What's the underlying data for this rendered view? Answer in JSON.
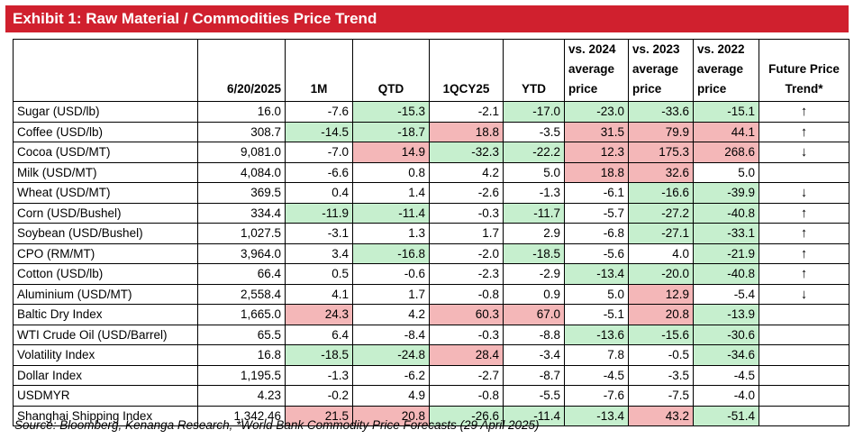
{
  "title": "Exhibit 1: Raw Material / Commodities Price Trend",
  "source": "Source: Bloomberg, Kenanga Research, *World Bank Commodity Price Forecasts (29 April 2025)",
  "headers": [
    "",
    "6/20/2025",
    "1M",
    "QTD",
    "1QCY25",
    "YTD",
    "vs. 2024 average price",
    "vs. 2023 average price",
    "vs. 2022 average price",
    "Future Price Trend*"
  ],
  "colors": {
    "banner": "#d0202e",
    "positive_fill": "#c6efce",
    "negative_fill": "#f4b7b8"
  },
  "rows": [
    {
      "name": "Sugar (USD/lb)",
      "cells": [
        {
          "v": "16.0",
          "c": ""
        },
        {
          "v": "-7.6",
          "c": ""
        },
        {
          "v": "-15.3",
          "c": "g"
        },
        {
          "v": "-2.1",
          "c": ""
        },
        {
          "v": "-17.0",
          "c": "g"
        },
        {
          "v": "-23.0",
          "c": "g"
        },
        {
          "v": "-33.6",
          "c": "g"
        },
        {
          "v": "-15.1",
          "c": "g"
        }
      ],
      "trend": "↑"
    },
    {
      "name": "Coffee (USD/lb)",
      "cells": [
        {
          "v": "308.7",
          "c": ""
        },
        {
          "v": "-14.5",
          "c": "g"
        },
        {
          "v": "-18.7",
          "c": "g"
        },
        {
          "v": "18.8",
          "c": "r"
        },
        {
          "v": "-3.5",
          "c": ""
        },
        {
          "v": "31.5",
          "c": "r"
        },
        {
          "v": "79.9",
          "c": "r"
        },
        {
          "v": "44.1",
          "c": "r"
        }
      ],
      "trend": "↑"
    },
    {
      "name": "Cocoa (USD/MT)",
      "cells": [
        {
          "v": "9,081.0",
          "c": ""
        },
        {
          "v": "-7.0",
          "c": ""
        },
        {
          "v": "14.9",
          "c": "r"
        },
        {
          "v": "-32.3",
          "c": "g"
        },
        {
          "v": "-22.2",
          "c": "g"
        },
        {
          "v": "12.3",
          "c": "r"
        },
        {
          "v": "175.3",
          "c": "r"
        },
        {
          "v": "268.6",
          "c": "r"
        }
      ],
      "trend": "↓"
    },
    {
      "name": "Milk (USD/MT)",
      "cells": [
        {
          "v": "4,084.0",
          "c": ""
        },
        {
          "v": "-6.6",
          "c": ""
        },
        {
          "v": "0.8",
          "c": ""
        },
        {
          "v": "4.2",
          "c": ""
        },
        {
          "v": "5.0",
          "c": ""
        },
        {
          "v": "18.8",
          "c": "r"
        },
        {
          "v": "32.6",
          "c": "r"
        },
        {
          "v": "5.0",
          "c": ""
        }
      ],
      "trend": ""
    },
    {
      "name": "Wheat (USD/MT)",
      "cells": [
        {
          "v": "369.5",
          "c": ""
        },
        {
          "v": "0.4",
          "c": ""
        },
        {
          "v": "1.4",
          "c": ""
        },
        {
          "v": "-2.6",
          "c": ""
        },
        {
          "v": "-1.3",
          "c": ""
        },
        {
          "v": "-6.1",
          "c": ""
        },
        {
          "v": "-16.6",
          "c": "g"
        },
        {
          "v": "-39.9",
          "c": "g"
        }
      ],
      "trend": "↓"
    },
    {
      "name": "Corn (USD/Bushel)",
      "cells": [
        {
          "v": "334.4",
          "c": ""
        },
        {
          "v": "-11.9",
          "c": "g"
        },
        {
          "v": "-11.4",
          "c": "g"
        },
        {
          "v": "-0.3",
          "c": ""
        },
        {
          "v": "-11.7",
          "c": "g"
        },
        {
          "v": "-5.7",
          "c": ""
        },
        {
          "v": "-27.2",
          "c": "g"
        },
        {
          "v": "-40.8",
          "c": "g"
        }
      ],
      "trend": "↑"
    },
    {
      "name": "Soybean (USD/Bushel)",
      "cells": [
        {
          "v": "1,027.5",
          "c": ""
        },
        {
          "v": "-3.1",
          "c": ""
        },
        {
          "v": "1.3",
          "c": ""
        },
        {
          "v": "1.7",
          "c": ""
        },
        {
          "v": "2.9",
          "c": ""
        },
        {
          "v": "-6.8",
          "c": ""
        },
        {
          "v": "-27.1",
          "c": "g"
        },
        {
          "v": "-33.1",
          "c": "g"
        }
      ],
      "trend": "↑"
    },
    {
      "name": "CPO (RM/MT)",
      "cells": [
        {
          "v": "3,964.0",
          "c": ""
        },
        {
          "v": "3.4",
          "c": ""
        },
        {
          "v": "-16.8",
          "c": "g"
        },
        {
          "v": "-2.0",
          "c": ""
        },
        {
          "v": "-18.5",
          "c": "g"
        },
        {
          "v": "-5.6",
          "c": ""
        },
        {
          "v": "4.0",
          "c": ""
        },
        {
          "v": "-21.9",
          "c": "g"
        }
      ],
      "trend": "↑"
    },
    {
      "name": "Cotton (USD/lb)",
      "cells": [
        {
          "v": "66.4",
          "c": ""
        },
        {
          "v": "0.5",
          "c": ""
        },
        {
          "v": "-0.6",
          "c": ""
        },
        {
          "v": "-2.3",
          "c": ""
        },
        {
          "v": "-2.9",
          "c": ""
        },
        {
          "v": "-13.4",
          "c": "g"
        },
        {
          "v": "-20.0",
          "c": "g"
        },
        {
          "v": "-40.8",
          "c": "g"
        }
      ],
      "trend": "↑"
    },
    {
      "name": "Aluminium (USD/MT)",
      "cells": [
        {
          "v": "2,558.4",
          "c": ""
        },
        {
          "v": "4.1",
          "c": ""
        },
        {
          "v": "1.7",
          "c": ""
        },
        {
          "v": "-0.8",
          "c": ""
        },
        {
          "v": "0.9",
          "c": ""
        },
        {
          "v": "5.0",
          "c": ""
        },
        {
          "v": "12.9",
          "c": "r"
        },
        {
          "v": "-5.4",
          "c": ""
        }
      ],
      "trend": "↓"
    },
    {
      "name": "Baltic Dry Index",
      "cells": [
        {
          "v": "1,665.0",
          "c": ""
        },
        {
          "v": "24.3",
          "c": "r"
        },
        {
          "v": "4.2",
          "c": ""
        },
        {
          "v": "60.3",
          "c": "r"
        },
        {
          "v": "67.0",
          "c": "r"
        },
        {
          "v": "-5.1",
          "c": ""
        },
        {
          "v": "20.8",
          "c": "r"
        },
        {
          "v": "-13.9",
          "c": "g"
        }
      ],
      "trend": ""
    },
    {
      "name": "WTI Crude Oil (USD/Barrel)",
      "cells": [
        {
          "v": "65.5",
          "c": ""
        },
        {
          "v": "6.4",
          "c": ""
        },
        {
          "v": "-8.4",
          "c": ""
        },
        {
          "v": "-0.3",
          "c": ""
        },
        {
          "v": "-8.8",
          "c": ""
        },
        {
          "v": "-13.6",
          "c": "g"
        },
        {
          "v": "-15.6",
          "c": "g"
        },
        {
          "v": "-30.6",
          "c": "g"
        }
      ],
      "trend": ""
    },
    {
      "name": "Volatility Index",
      "cells": [
        {
          "v": "16.8",
          "c": ""
        },
        {
          "v": "-18.5",
          "c": "g"
        },
        {
          "v": "-24.8",
          "c": "g"
        },
        {
          "v": "28.4",
          "c": "r"
        },
        {
          "v": "-3.4",
          "c": ""
        },
        {
          "v": "7.8",
          "c": ""
        },
        {
          "v": "-0.5",
          "c": ""
        },
        {
          "v": "-34.6",
          "c": "g"
        }
      ],
      "trend": ""
    },
    {
      "name": "Dollar Index",
      "cells": [
        {
          "v": "1,195.5",
          "c": ""
        },
        {
          "v": "-1.3",
          "c": ""
        },
        {
          "v": "-6.2",
          "c": ""
        },
        {
          "v": "-2.7",
          "c": ""
        },
        {
          "v": "-8.7",
          "c": ""
        },
        {
          "v": "-4.5",
          "c": ""
        },
        {
          "v": "-3.5",
          "c": ""
        },
        {
          "v": "-4.5",
          "c": ""
        }
      ],
      "trend": ""
    },
    {
      "name": "USDMYR",
      "cells": [
        {
          "v": "4.23",
          "c": ""
        },
        {
          "v": "-0.2",
          "c": ""
        },
        {
          "v": "4.9",
          "c": ""
        },
        {
          "v": "-0.8",
          "c": ""
        },
        {
          "v": "-5.5",
          "c": ""
        },
        {
          "v": "-7.6",
          "c": ""
        },
        {
          "v": "-7.5",
          "c": ""
        },
        {
          "v": "-4.0",
          "c": ""
        }
      ],
      "trend": ""
    },
    {
      "name": "Shanghai Shipping Index",
      "cells": [
        {
          "v": "1,342.46",
          "c": ""
        },
        {
          "v": "21.5",
          "c": "r"
        },
        {
          "v": "20.8",
          "c": "r"
        },
        {
          "v": "-26.6",
          "c": "g"
        },
        {
          "v": "-11.4",
          "c": "g"
        },
        {
          "v": "-13.4",
          "c": "g"
        },
        {
          "v": "43.2",
          "c": "r"
        },
        {
          "v": "-51.4",
          "c": "g"
        }
      ],
      "trend": ""
    }
  ]
}
